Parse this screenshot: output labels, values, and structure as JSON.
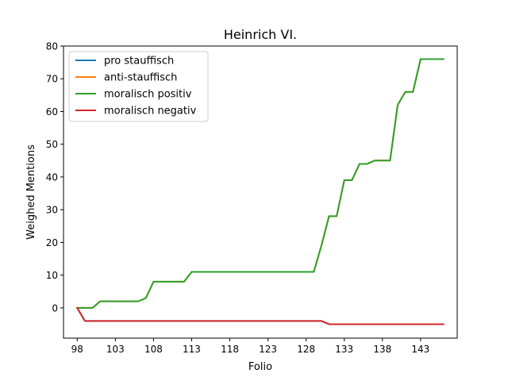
{
  "chart_data": {
    "type": "line",
    "title": "Heinrich VI.",
    "xlabel": "Folio",
    "ylabel": "Weighed Mentions",
    "xlim": [
      96.2,
      147.8
    ],
    "ylim": [
      -9.25,
      80
    ],
    "xticks": [
      98,
      103,
      108,
      113,
      118,
      123,
      128,
      133,
      138,
      143
    ],
    "yticks": [
      0,
      10,
      20,
      30,
      40,
      50,
      60,
      70,
      80
    ],
    "grid": false,
    "legend_position": "top-left",
    "x": [
      98,
      99,
      100,
      101,
      102,
      103,
      104,
      105,
      106,
      107,
      108,
      109,
      110,
      111,
      112,
      113,
      114,
      115,
      116,
      117,
      118,
      119,
      120,
      121,
      122,
      123,
      124,
      125,
      126,
      127,
      128,
      129,
      130,
      131,
      132,
      133,
      134,
      135,
      136,
      137,
      138,
      139,
      140,
      141,
      142,
      143,
      144,
      145,
      146
    ],
    "series": [
      {
        "name": "pro stauffisch",
        "color": "#1f77b4",
        "values": [
          0,
          -4,
          -4,
          -4,
          -4,
          -4,
          -4,
          -4,
          -4,
          -4,
          -4,
          -4,
          -4,
          -4,
          -4,
          -4,
          -4,
          -4,
          -4,
          -4,
          -4,
          -4,
          -4,
          -4,
          -4,
          -4,
          -4,
          -4,
          -4,
          -4,
          -4,
          -4,
          -4,
          -5,
          -5,
          -5,
          -5,
          -5,
          -5,
          -5,
          -5,
          -5,
          -5,
          -5,
          -5,
          -5,
          -5,
          -5,
          -5
        ]
      },
      {
        "name": "anti-stauffisch",
        "color": "#ff7f0e",
        "values": [
          0,
          0,
          0,
          2,
          2,
          2,
          2,
          2,
          2,
          3,
          8,
          8,
          8,
          8,
          8,
          11,
          11,
          11,
          11,
          11,
          11,
          11,
          11,
          11,
          11,
          11,
          11,
          11,
          11,
          11,
          11,
          11,
          19,
          28,
          28,
          39,
          39,
          44,
          44,
          45,
          45,
          45,
          62,
          66,
          66,
          76,
          76,
          76,
          76
        ]
      },
      {
        "name": "moralisch positiv",
        "color": "#2ca02c",
        "values": [
          0,
          0,
          0,
          2,
          2,
          2,
          2,
          2,
          2,
          3,
          8,
          8,
          8,
          8,
          8,
          11,
          11,
          11,
          11,
          11,
          11,
          11,
          11,
          11,
          11,
          11,
          11,
          11,
          11,
          11,
          11,
          11,
          19,
          28,
          28,
          39,
          39,
          44,
          44,
          45,
          45,
          45,
          62,
          66,
          66,
          76,
          76,
          76,
          76
        ]
      },
      {
        "name": "moralisch negativ",
        "color": "#d62728",
        "values": [
          0,
          -4,
          -4,
          -4,
          -4,
          -4,
          -4,
          -4,
          -4,
          -4,
          -4,
          -4,
          -4,
          -4,
          -4,
          -4,
          -4,
          -4,
          -4,
          -4,
          -4,
          -4,
          -4,
          -4,
          -4,
          -4,
          -4,
          -4,
          -4,
          -4,
          -4,
          -4,
          -4,
          -5,
          -5,
          -5,
          -5,
          -5,
          -5,
          -5,
          -5,
          -5,
          -5,
          -5,
          -5,
          -5,
          -5,
          -5,
          -5
        ]
      }
    ]
  }
}
